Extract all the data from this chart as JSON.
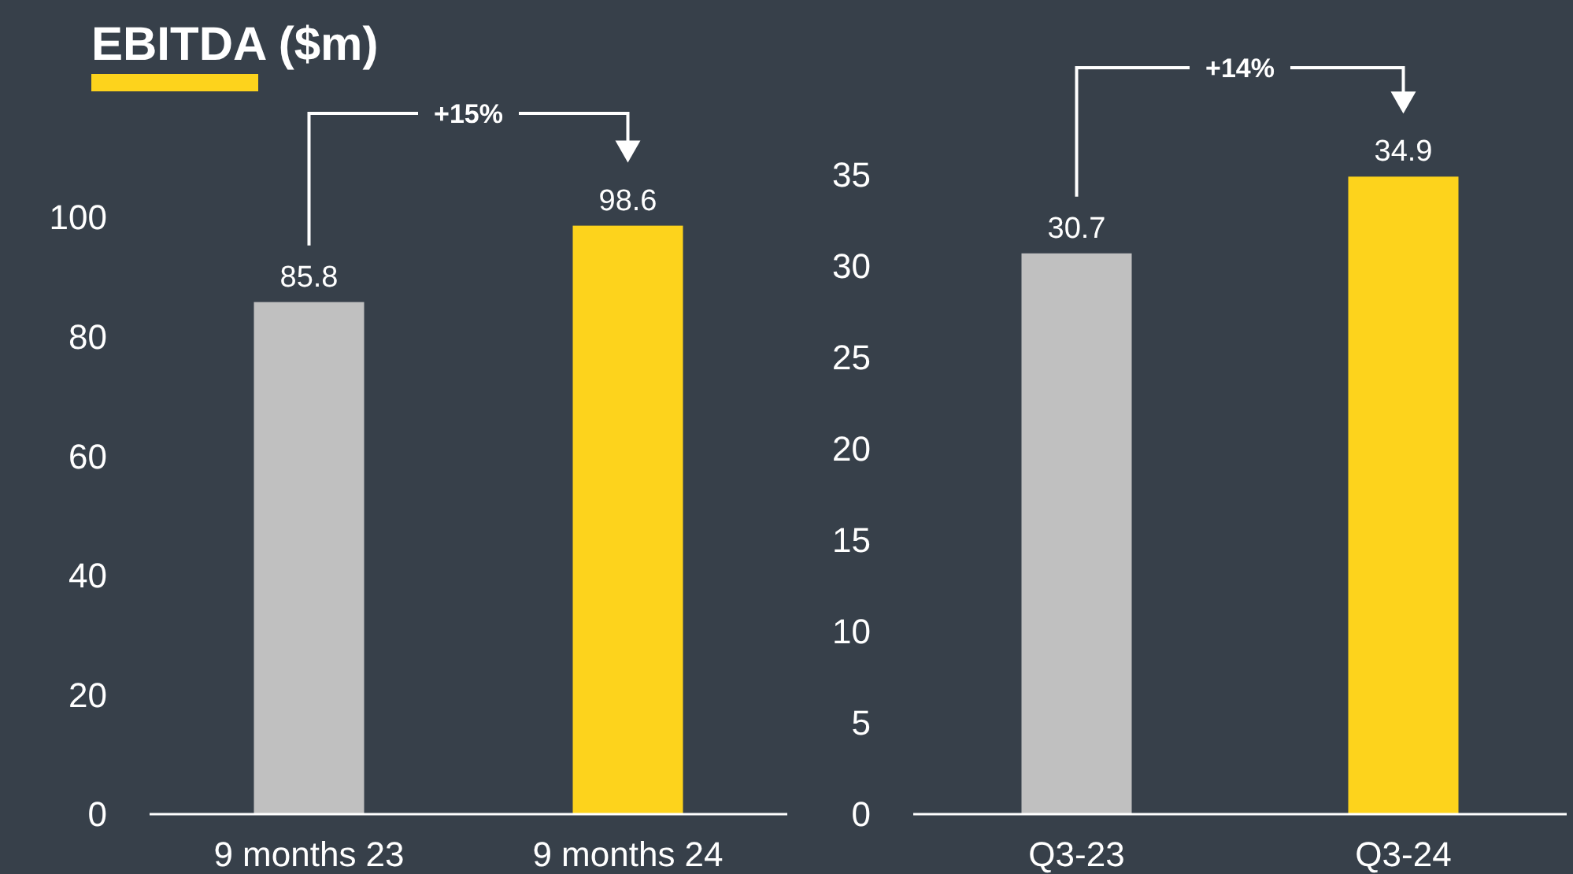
{
  "chart_data": [
    {
      "type": "bar",
      "title": "EBITDA ($m)",
      "categories": [
        "9 months 23",
        "9 months 24"
      ],
      "values": [
        85.8,
        98.6
      ],
      "colors": [
        "#c0c0c0",
        "#fdd31c"
      ],
      "ylim": [
        0,
        100
      ],
      "yticks": [
        0,
        20,
        40,
        60,
        80,
        100
      ],
      "data_labels": true,
      "grid": false,
      "annotations": [
        "+15%"
      ]
    },
    {
      "type": "bar",
      "categories": [
        "Q3-23",
        "Q3-24"
      ],
      "values": [
        30.7,
        34.9
      ],
      "colors": [
        "#c0c0c0",
        "#fdd31c"
      ],
      "ylim": [
        0,
        35
      ],
      "yticks": [
        0,
        5,
        10,
        15,
        20,
        25,
        30,
        35
      ],
      "data_labels": true,
      "grid": false,
      "annotations": [
        "+14%"
      ]
    }
  ]
}
